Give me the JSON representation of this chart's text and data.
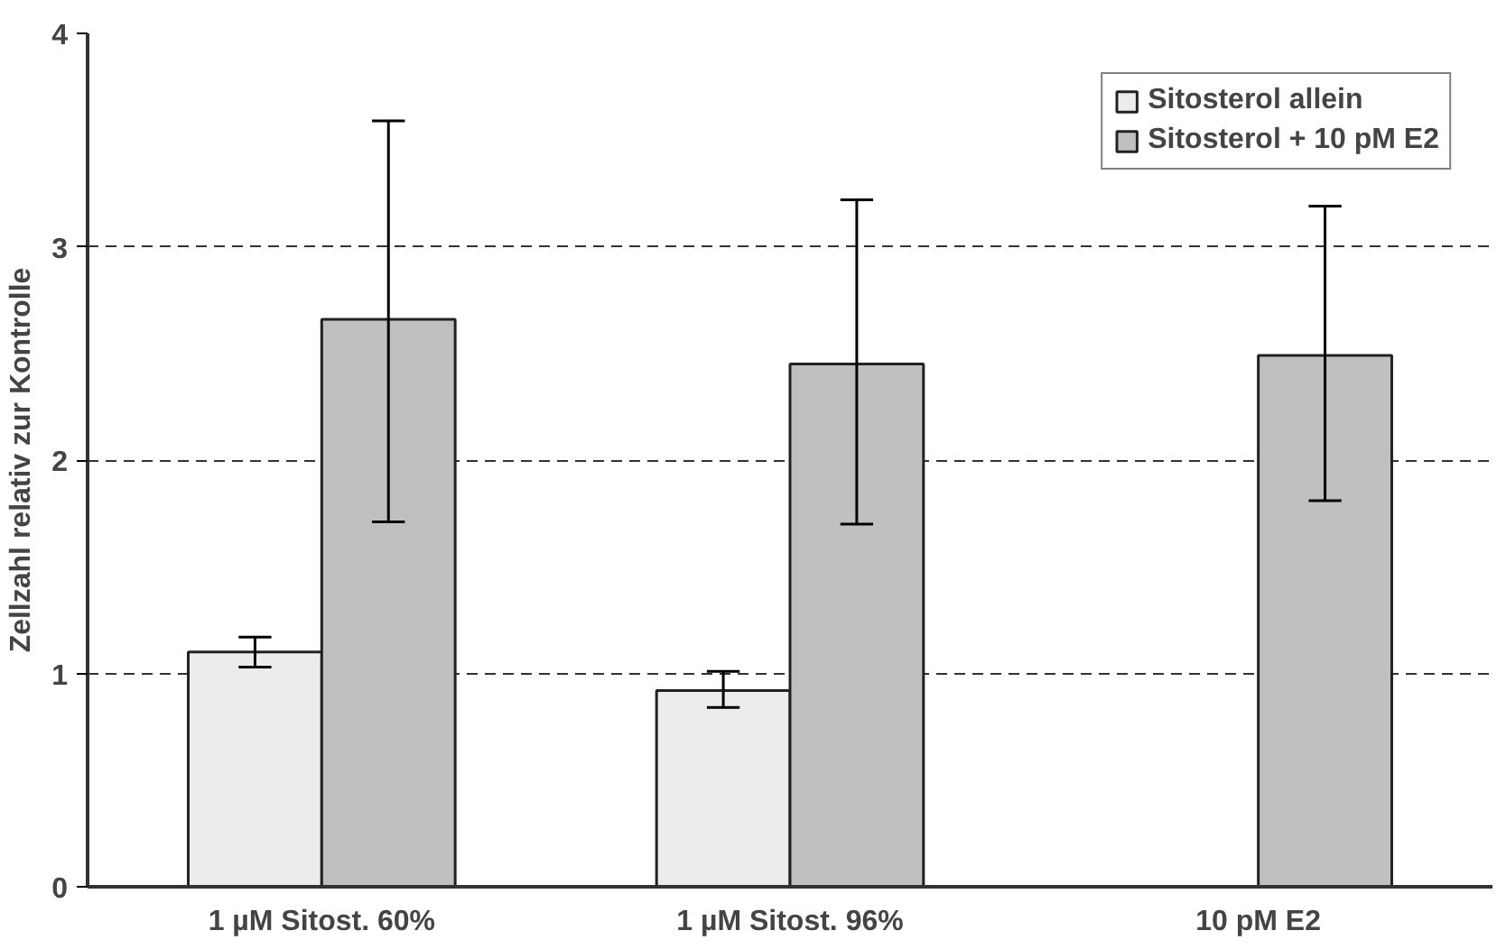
{
  "chart_data": {
    "type": "bar",
    "ylabel": "Zellzahl relativ zur Kontrolle",
    "categories": [
      "1 µM Sitost. 60%",
      "1 µM Sitost. 96%",
      "10 pM E2"
    ],
    "series": [
      {
        "name": "Sitosterol allein",
        "color": "#ececec",
        "values": [
          1.1,
          0.92,
          null
        ],
        "errors": [
          [
            1.03,
            1.17
          ],
          [
            0.84,
            1.01
          ],
          null
        ]
      },
      {
        "name": "Sitosterol + 10 pM E2",
        "color": "#c0c0c0",
        "values": [
          2.66,
          2.45,
          2.49
        ],
        "errors": [
          [
            1.71,
            3.59
          ],
          [
            1.7,
            3.22
          ],
          [
            1.81,
            3.19
          ]
        ]
      }
    ],
    "ylim": [
      0,
      4
    ],
    "yticks": [
      0,
      1,
      2,
      3,
      4
    ],
    "grid": "y",
    "legend": "top right"
  }
}
